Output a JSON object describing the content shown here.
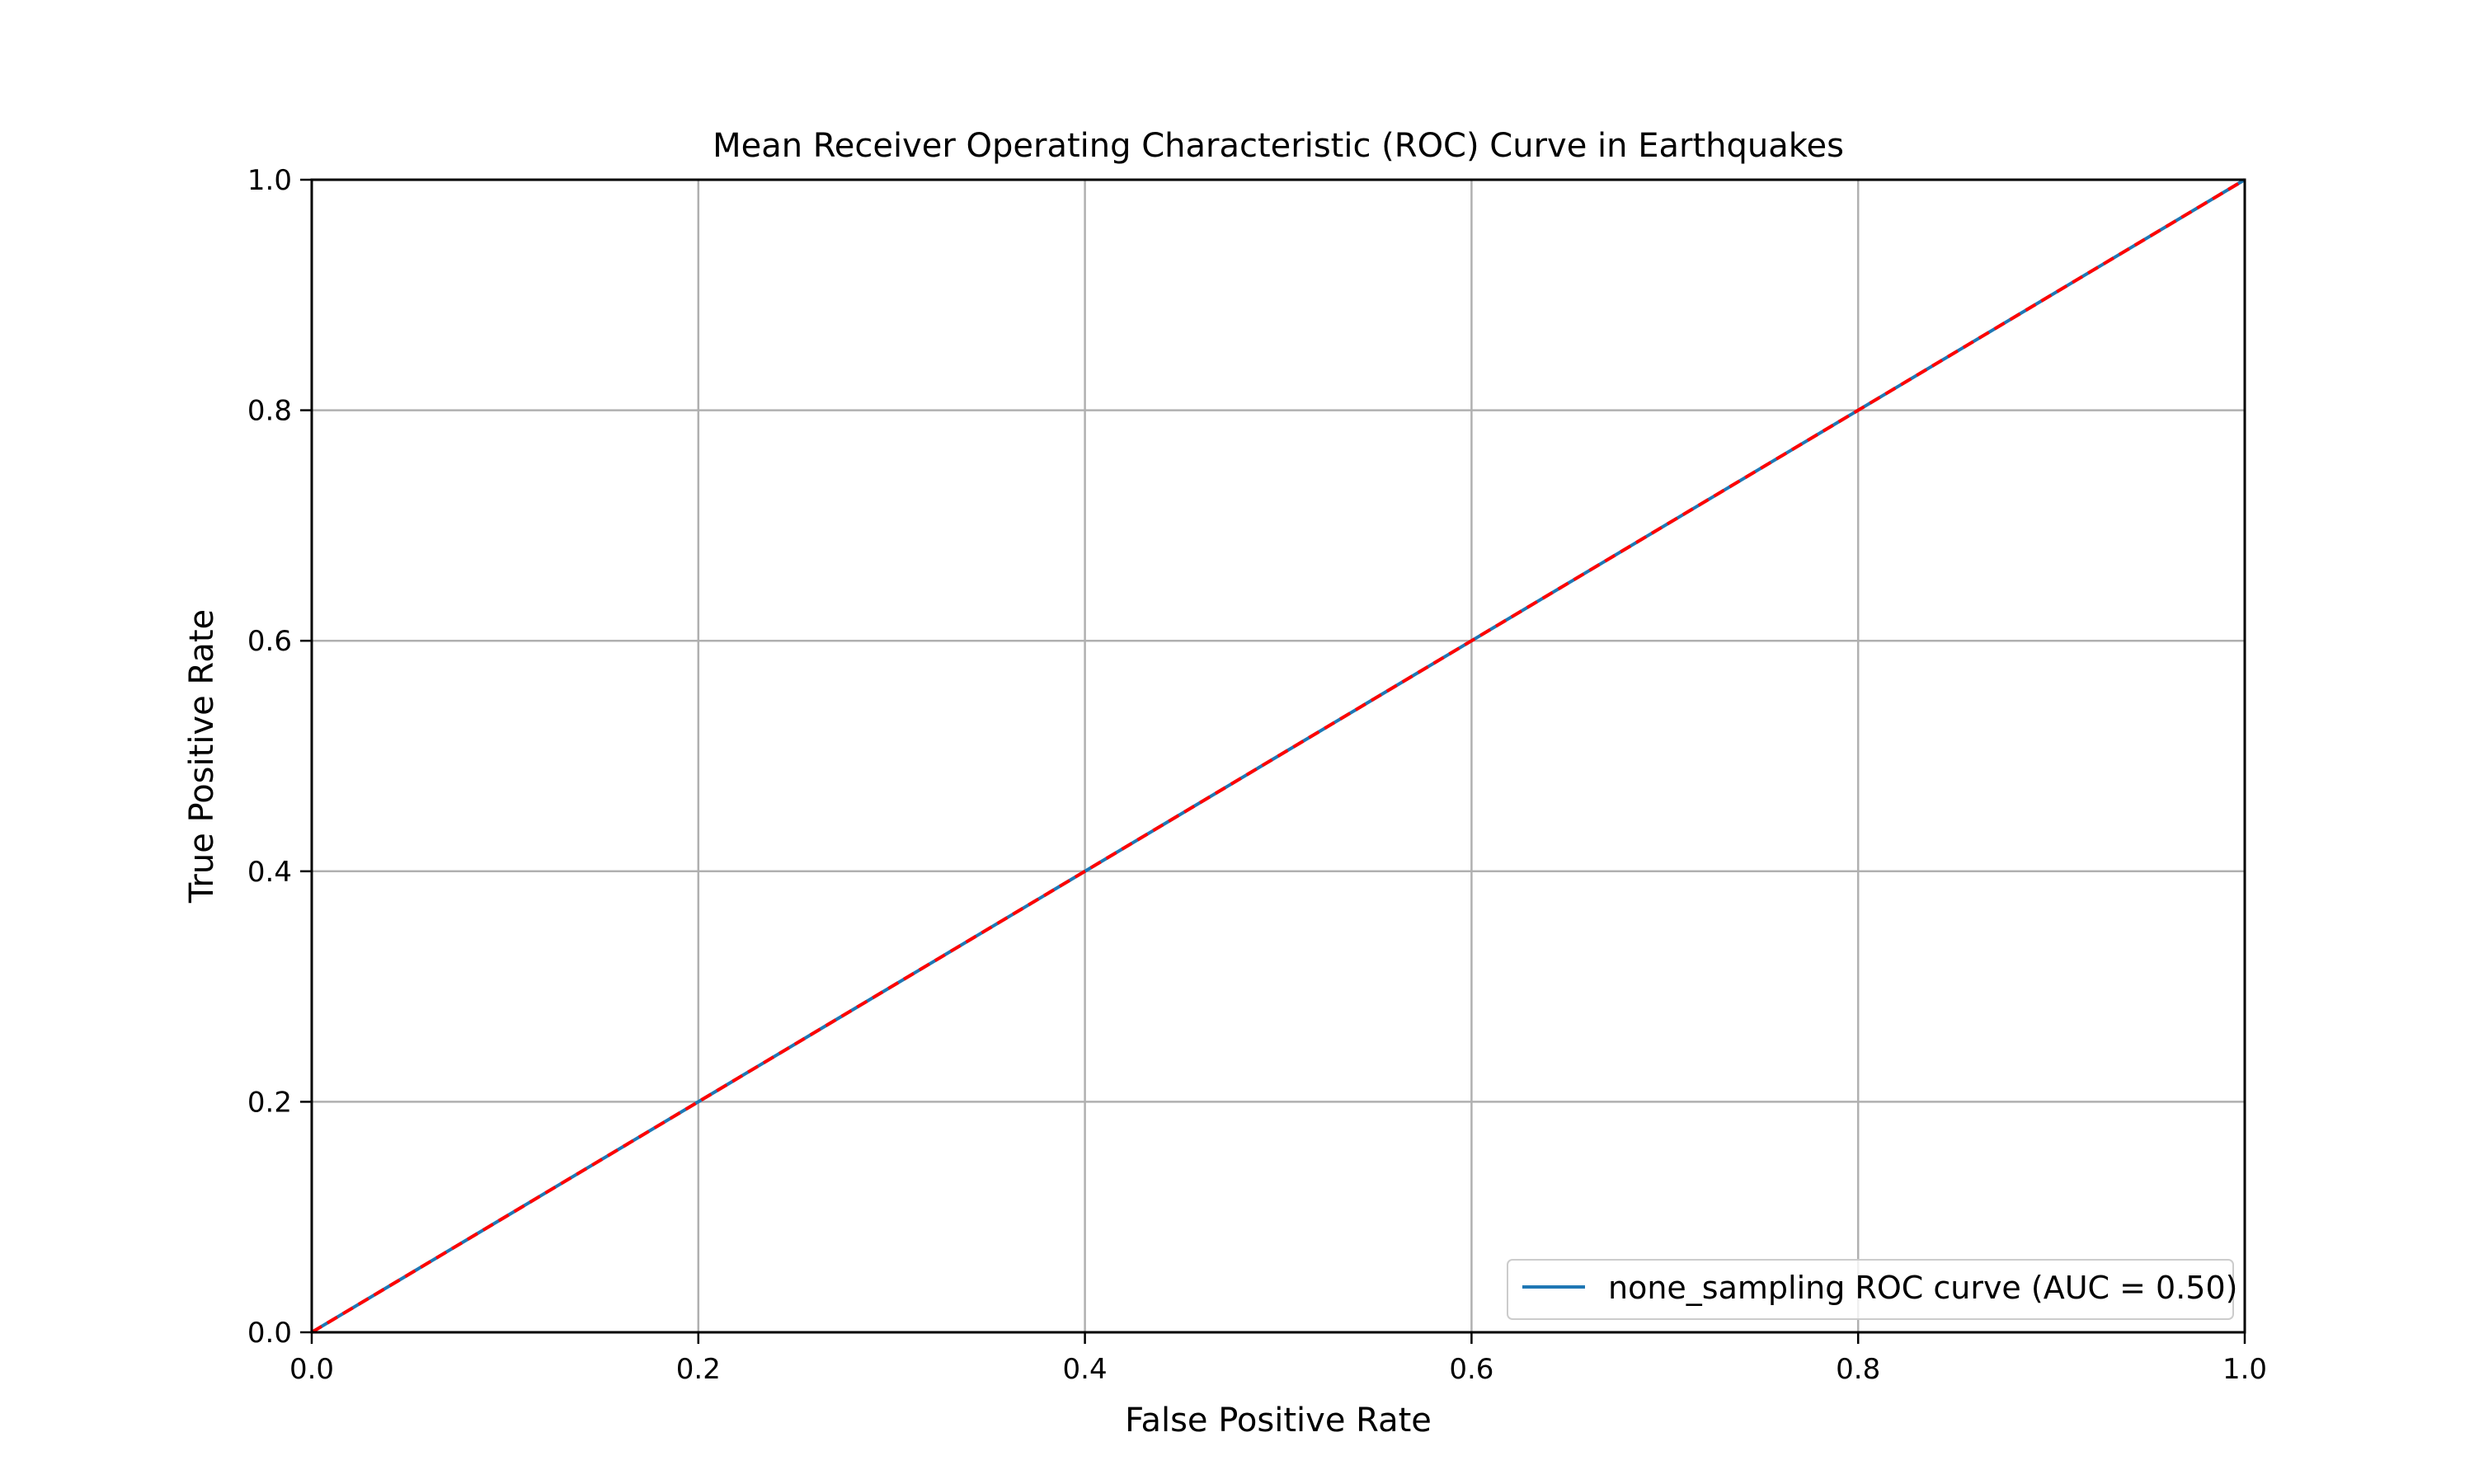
{
  "chart_data": {
    "type": "line",
    "title": "Mean Receiver Operating Characteristic (ROC) Curve in Earthquakes",
    "xlabel": "False Positive Rate",
    "ylabel": "True Positive Rate",
    "xlim": [
      0.0,
      1.0
    ],
    "ylim": [
      0.0,
      1.0
    ],
    "xticks": [
      "0.0",
      "0.2",
      "0.4",
      "0.6",
      "0.8",
      "1.0"
    ],
    "yticks": [
      "0.0",
      "0.2",
      "0.4",
      "0.6",
      "0.8",
      "1.0"
    ],
    "grid": true,
    "legend_position": "lower-right",
    "series": [
      {
        "name": "none_sampling ROC curve (AUC = 0.50)",
        "x": [
          0.0,
          1.0
        ],
        "y": [
          0.0,
          1.0
        ],
        "color": "#1f77b4",
        "style": "solid"
      },
      {
        "x": [
          0.0,
          1.0
        ],
        "y": [
          0.0,
          1.0
        ],
        "color": "#ff0000",
        "style": "dashed"
      }
    ]
  }
}
